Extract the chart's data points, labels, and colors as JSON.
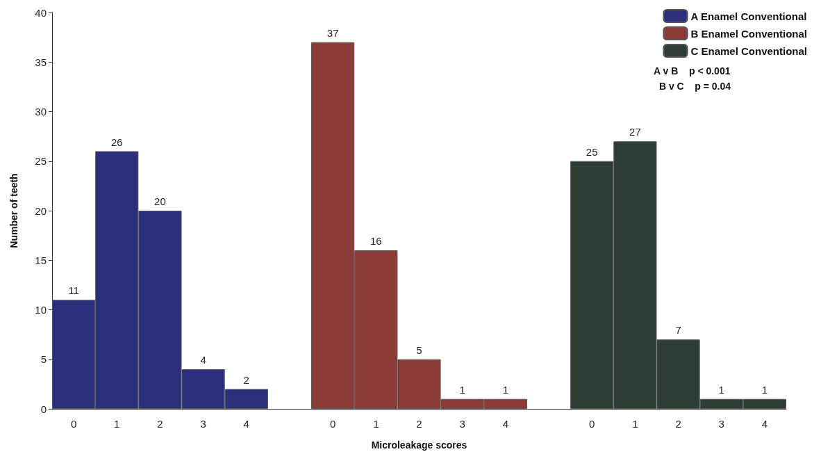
{
  "chart_data": {
    "type": "bar",
    "xlabel": "Microleakage scores",
    "ylabel": "Number of teeth",
    "categories": [
      "0",
      "1",
      "2",
      "3",
      "4",
      null,
      "0",
      "1",
      "2",
      "3",
      "4",
      null,
      "0",
      "1",
      "2",
      "3",
      "4"
    ],
    "series": [
      {
        "name": "A Enamel Conventional",
        "color": "#2b2f7c",
        "values": [
          11,
          26,
          20,
          4,
          2,
          null,
          null,
          null,
          null,
          null,
          null,
          null,
          null,
          null,
          null,
          null,
          null
        ]
      },
      {
        "name": "B Enamel Conventional",
        "color": "#8c3b37",
        "values": [
          null,
          null,
          null,
          null,
          null,
          null,
          37,
          16,
          5,
          1,
          1,
          null,
          null,
          null,
          null,
          null,
          null
        ]
      },
      {
        "name": "C Enamel Conventional",
        "color": "#2e3d34",
        "values": [
          null,
          null,
          null,
          null,
          null,
          null,
          null,
          null,
          null,
          null,
          null,
          null,
          25,
          27,
          7,
          1,
          1
        ]
      }
    ],
    "ylim": [
      0,
      40
    ],
    "yticks": [
      0,
      5,
      10,
      15,
      20,
      25,
      30,
      35,
      40
    ],
    "grid": false,
    "legend": "top right",
    "data_labels": true,
    "annotations": [
      "A v B    p < 0.001",
      "B v C    p = 0.04"
    ]
  }
}
